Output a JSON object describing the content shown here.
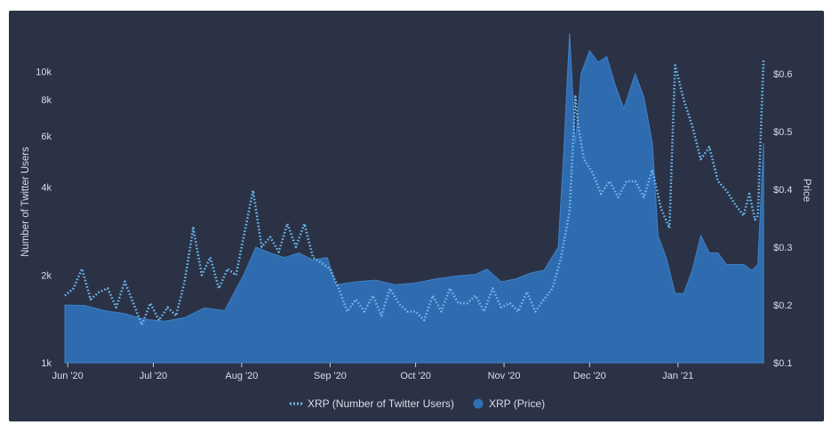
{
  "chart_data": {
    "type": "area",
    "title": "",
    "legend_position": "bottom-center",
    "grid": false,
    "x_axis": {
      "type": "date",
      "range": [
        "2020-05-31",
        "2021-01-31"
      ],
      "ticks": [
        {
          "date": "2020-06-01",
          "label": "Jun '20"
        },
        {
          "date": "2020-07-01",
          "label": "Jul '20"
        },
        {
          "date": "2020-08-01",
          "label": "Aug '20"
        },
        {
          "date": "2020-09-01",
          "label": "Sep '20"
        },
        {
          "date": "2020-10-01",
          "label": "Oct '20"
        },
        {
          "date": "2020-11-01",
          "label": "Nov '20"
        },
        {
          "date": "2020-12-01",
          "label": "Dec '20"
        },
        {
          "date": "2021-01-01",
          "label": "Jan '21"
        }
      ]
    },
    "y_left": {
      "label": "Number of Twitter Users",
      "scale": "log",
      "range": [
        1000,
        15500
      ],
      "ticks": [
        {
          "value": 1000,
          "label": "1k"
        },
        {
          "value": 2000,
          "label": "2k"
        },
        {
          "value": 4000,
          "label": "4k"
        },
        {
          "value": 6000,
          "label": "6k"
        },
        {
          "value": 8000,
          "label": "8k"
        },
        {
          "value": 10000,
          "label": "10k"
        }
      ]
    },
    "y_right": {
      "label": "Price",
      "scale": "linear",
      "range": [
        0.1,
        0.7
      ],
      "ticks": [
        {
          "value": 0.1,
          "label": "$0.1"
        },
        {
          "value": 0.2,
          "label": "$0.2"
        },
        {
          "value": 0.3,
          "label": "$0.3"
        },
        {
          "value": 0.4,
          "label": "$0.4"
        },
        {
          "value": 0.5,
          "label": "$0.5"
        },
        {
          "value": 0.6,
          "label": "$0.6"
        }
      ]
    },
    "series": [
      {
        "name": "XRP (Number of Twitter Users)",
        "axis": "left",
        "style": "dotted-line",
        "color": "#6ab8ef",
        "points": [
          [
            "2020-05-31",
            1700
          ],
          [
            "2020-06-03",
            1800
          ],
          [
            "2020-06-06",
            2100
          ],
          [
            "2020-06-09",
            1650
          ],
          [
            "2020-06-12",
            1750
          ],
          [
            "2020-06-15",
            1800
          ],
          [
            "2020-06-18",
            1550
          ],
          [
            "2020-06-21",
            1900
          ],
          [
            "2020-06-24",
            1600
          ],
          [
            "2020-06-27",
            1350
          ],
          [
            "2020-06-30",
            1600
          ],
          [
            "2020-07-03",
            1400
          ],
          [
            "2020-07-06",
            1550
          ],
          [
            "2020-07-09",
            1450
          ],
          [
            "2020-07-12",
            1900
          ],
          [
            "2020-07-15",
            2900
          ],
          [
            "2020-07-18",
            2000
          ],
          [
            "2020-07-21",
            2300
          ],
          [
            "2020-07-24",
            1800
          ],
          [
            "2020-07-27",
            2100
          ],
          [
            "2020-07-30",
            2000
          ],
          [
            "2020-08-02",
            2800
          ],
          [
            "2020-08-05",
            3900
          ],
          [
            "2020-08-08",
            2500
          ],
          [
            "2020-08-11",
            2700
          ],
          [
            "2020-08-14",
            2400
          ],
          [
            "2020-08-17",
            3000
          ],
          [
            "2020-08-20",
            2500
          ],
          [
            "2020-08-23",
            3000
          ],
          [
            "2020-08-26",
            2300
          ],
          [
            "2020-08-29",
            2200
          ],
          [
            "2020-09-01",
            2100
          ],
          [
            "2020-09-04",
            1800
          ],
          [
            "2020-09-07",
            1500
          ],
          [
            "2020-09-10",
            1650
          ],
          [
            "2020-09-13",
            1500
          ],
          [
            "2020-09-16",
            1700
          ],
          [
            "2020-09-19",
            1450
          ],
          [
            "2020-09-22",
            1800
          ],
          [
            "2020-09-25",
            1600
          ],
          [
            "2020-09-28",
            1500
          ],
          [
            "2020-10-01",
            1500
          ],
          [
            "2020-10-04",
            1400
          ],
          [
            "2020-10-07",
            1700
          ],
          [
            "2020-10-10",
            1500
          ],
          [
            "2020-10-13",
            1800
          ],
          [
            "2020-10-16",
            1600
          ],
          [
            "2020-10-19",
            1600
          ],
          [
            "2020-10-22",
            1700
          ],
          [
            "2020-10-25",
            1500
          ],
          [
            "2020-10-28",
            1800
          ],
          [
            "2020-10-31",
            1550
          ],
          [
            "2020-11-03",
            1600
          ],
          [
            "2020-11-06",
            1500
          ],
          [
            "2020-11-09",
            1750
          ],
          [
            "2020-11-12",
            1500
          ],
          [
            "2020-11-15",
            1650
          ],
          [
            "2020-11-18",
            1800
          ],
          [
            "2020-11-21",
            2300
          ],
          [
            "2020-11-24",
            3300
          ],
          [
            "2020-11-26",
            8200
          ],
          [
            "2020-11-27",
            6500
          ],
          [
            "2020-11-29",
            5000
          ],
          [
            "2020-12-02",
            4500
          ],
          [
            "2020-12-05",
            3800
          ],
          [
            "2020-12-08",
            4200
          ],
          [
            "2020-12-11",
            3700
          ],
          [
            "2020-12-14",
            4200
          ],
          [
            "2020-12-17",
            4200
          ],
          [
            "2020-12-20",
            3700
          ],
          [
            "2020-12-23",
            4600
          ],
          [
            "2020-12-26",
            3400
          ],
          [
            "2020-12-29",
            2900
          ],
          [
            "2020-12-31",
            10500
          ],
          [
            "2021-01-03",
            8000
          ],
          [
            "2021-01-06",
            6500
          ],
          [
            "2021-01-09",
            5000
          ],
          [
            "2021-01-12",
            5500
          ],
          [
            "2021-01-15",
            4200
          ],
          [
            "2021-01-18",
            3900
          ],
          [
            "2021-01-21",
            3500
          ],
          [
            "2021-01-24",
            3200
          ],
          [
            "2021-01-26",
            3800
          ],
          [
            "2021-01-28",
            3100
          ],
          [
            "2021-01-29",
            3200
          ],
          [
            "2021-01-30",
            6000
          ],
          [
            "2021-01-31",
            11000
          ]
        ]
      },
      {
        "name": "XRP (Price)",
        "axis": "right",
        "style": "area",
        "color": "#2f6fb5",
        "points": [
          [
            "2020-05-31",
            0.2
          ],
          [
            "2020-06-07",
            0.199
          ],
          [
            "2020-06-14",
            0.19
          ],
          [
            "2020-06-21",
            0.185
          ],
          [
            "2020-06-28",
            0.175
          ],
          [
            "2020-07-05",
            0.172
          ],
          [
            "2020-07-12",
            0.178
          ],
          [
            "2020-07-19",
            0.195
          ],
          [
            "2020-07-26",
            0.19
          ],
          [
            "2020-08-02",
            0.255
          ],
          [
            "2020-08-06",
            0.3
          ],
          [
            "2020-08-11",
            0.29
          ],
          [
            "2020-08-16",
            0.282
          ],
          [
            "2020-08-21",
            0.29
          ],
          [
            "2020-08-26",
            0.278
          ],
          [
            "2020-08-31",
            0.282
          ],
          [
            "2020-09-03",
            0.235
          ],
          [
            "2020-09-10",
            0.24
          ],
          [
            "2020-09-17",
            0.243
          ],
          [
            "2020-09-24",
            0.235
          ],
          [
            "2020-10-01",
            0.238
          ],
          [
            "2020-10-08",
            0.245
          ],
          [
            "2020-10-15",
            0.25
          ],
          [
            "2020-10-22",
            0.253
          ],
          [
            "2020-10-26",
            0.262
          ],
          [
            "2020-10-31",
            0.24
          ],
          [
            "2020-11-05",
            0.245
          ],
          [
            "2020-11-10",
            0.255
          ],
          [
            "2020-11-15",
            0.26
          ],
          [
            "2020-11-20",
            0.3
          ],
          [
            "2020-11-22",
            0.47
          ],
          [
            "2020-11-24",
            0.67
          ],
          [
            "2020-11-26",
            0.48
          ],
          [
            "2020-11-28",
            0.6
          ],
          [
            "2020-12-01",
            0.64
          ],
          [
            "2020-12-04",
            0.62
          ],
          [
            "2020-12-07",
            0.63
          ],
          [
            "2020-12-10",
            0.58
          ],
          [
            "2020-12-13",
            0.54
          ],
          [
            "2020-12-17",
            0.6
          ],
          [
            "2020-12-20",
            0.56
          ],
          [
            "2020-12-23",
            0.48
          ],
          [
            "2020-12-25",
            0.32
          ],
          [
            "2020-12-28",
            0.28
          ],
          [
            "2020-12-31",
            0.22
          ],
          [
            "2021-01-03",
            0.22
          ],
          [
            "2021-01-06",
            0.26
          ],
          [
            "2021-01-09",
            0.32
          ],
          [
            "2021-01-12",
            0.29
          ],
          [
            "2021-01-15",
            0.29
          ],
          [
            "2021-01-18",
            0.27
          ],
          [
            "2021-01-21",
            0.27
          ],
          [
            "2021-01-24",
            0.27
          ],
          [
            "2021-01-27",
            0.26
          ],
          [
            "2021-01-29",
            0.27
          ],
          [
            "2021-01-31",
            0.48
          ]
        ]
      }
    ]
  }
}
